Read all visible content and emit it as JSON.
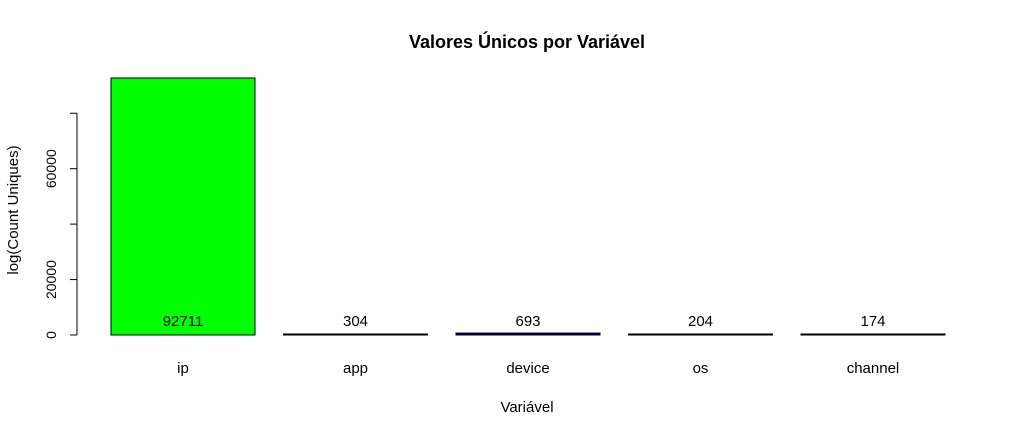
{
  "chart_data": {
    "type": "bar",
    "title": "Valores Únicos por Variável",
    "xlabel": "Variável",
    "ylabel": "log(Count Uniques)",
    "categories": [
      "ip",
      "app",
      "device",
      "os",
      "channel"
    ],
    "values": [
      92711,
      304,
      693,
      204,
      174
    ],
    "data_labels": [
      "92711",
      "304",
      "693",
      "204",
      "174"
    ],
    "colors": [
      "#00ff00",
      "#000000",
      "#00008b",
      "#000000",
      "#000000"
    ],
    "yticks": [
      0,
      20000,
      40000,
      60000,
      80000
    ],
    "ytick_labels": [
      "0",
      "20000",
      "",
      "60000",
      ""
    ],
    "ylim": [
      0,
      92711
    ],
    "grid": false,
    "legend": "none"
  }
}
